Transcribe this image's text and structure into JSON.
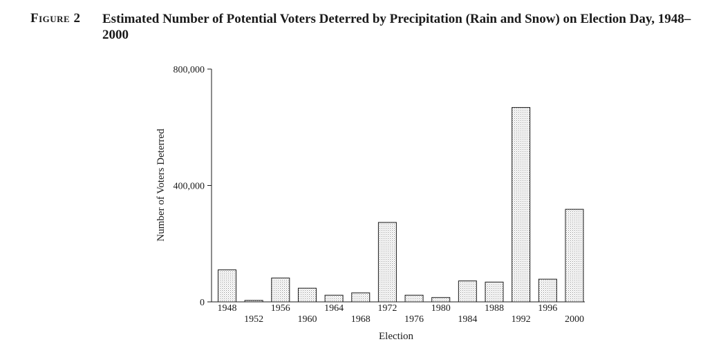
{
  "figure": {
    "label": "Figure 2",
    "title": "Estimated Number of Potential Voters Deterred by Precipitation (Rain and Snow) on Election Day, 1948–2000"
  },
  "chart_data": {
    "type": "bar",
    "xlabel": "Election",
    "ylabel": "Number of Voters Deterred",
    "ylim": [
      0,
      800000
    ],
    "yticks": [
      {
        "value": 0,
        "label": "0"
      },
      {
        "value": 400000,
        "label": "400,000"
      },
      {
        "value": 800000,
        "label": "800,000"
      }
    ],
    "categories": [
      "1948",
      "1952",
      "1956",
      "1960",
      "1964",
      "1968",
      "1972",
      "1976",
      "1980",
      "1984",
      "1988",
      "1992",
      "1996",
      "2000"
    ],
    "values": [
      110000,
      5000,
      82000,
      47000,
      23000,
      31000,
      273000,
      23000,
      15000,
      72000,
      68000,
      668000,
      78000,
      318000
    ],
    "grid": false,
    "legend": "none",
    "bar_fill": "#d9d9d9",
    "bar_stroke": "#1a1a1a"
  }
}
